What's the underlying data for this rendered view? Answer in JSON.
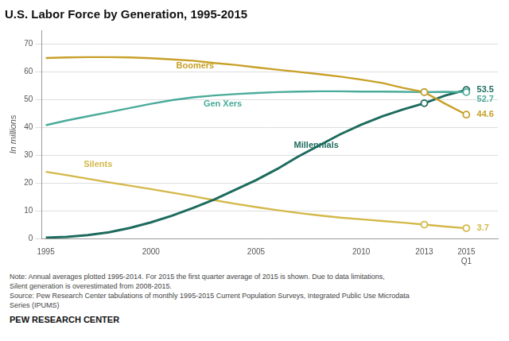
{
  "chart_data": {
    "type": "line",
    "title": "U.S. Labor Force by Generation, 1995-2015",
    "ylabel": "In millions",
    "x": [
      1995,
      1996,
      1997,
      1998,
      1999,
      2000,
      2001,
      2002,
      2003,
      2004,
      2005,
      2006,
      2007,
      2008,
      2009,
      2010,
      2011,
      2012,
      2013,
      2014,
      2015
    ],
    "series": [
      {
        "name": "Boomers",
        "color": "#c8a028",
        "marker": "circle",
        "values": [
          65.0,
          65.2,
          65.3,
          65.3,
          65.2,
          64.9,
          64.5,
          64.0,
          63.2,
          62.5,
          61.6,
          60.8,
          60.0,
          59.2,
          58.3,
          57.2,
          56.0,
          54.2,
          52.7,
          48.5,
          44.6
        ],
        "markers": [
          {
            "x": 2013,
            "y": 52.7
          },
          {
            "x": 2015,
            "y": 44.6
          }
        ]
      },
      {
        "name": "Gen Xers",
        "color": "#4aab9a",
        "marker": "circle",
        "values": [
          40.8,
          42.5,
          44.0,
          45.5,
          47.0,
          48.5,
          49.8,
          50.8,
          51.5,
          52.0,
          52.4,
          52.7,
          52.9,
          53.0,
          53.0,
          52.9,
          52.9,
          52.8,
          52.7,
          52.8,
          52.7
        ],
        "markers": [
          {
            "x": 2013,
            "y": 52.7
          },
          {
            "x": 2015,
            "y": 52.7
          }
        ]
      },
      {
        "name": "Millennials",
        "color": "#1d6b5e",
        "marker": "circle",
        "values": [
          0.3,
          0.6,
          1.2,
          2.2,
          3.8,
          5.8,
          8.2,
          11.0,
          14.0,
          17.5,
          21.0,
          25.0,
          29.5,
          33.5,
          37.5,
          41.0,
          44.0,
          46.5,
          48.7,
          51.5,
          53.5
        ],
        "markers": [
          {
            "x": 2013,
            "y": 48.7
          },
          {
            "x": 2015,
            "y": 53.5
          }
        ]
      },
      {
        "name": "Silents",
        "color": "#d4b84a",
        "marker": "circle",
        "values": [
          24.0,
          22.8,
          21.5,
          20.2,
          19.0,
          17.8,
          16.5,
          15.2,
          13.8,
          12.5,
          11.3,
          10.2,
          9.2,
          8.3,
          7.5,
          6.9,
          6.3,
          5.7,
          5.0,
          4.3,
          3.7
        ],
        "markers": [
          {
            "x": 2013,
            "y": 5.0
          },
          {
            "x": 2015,
            "y": 3.7
          }
        ]
      }
    ],
    "xlim": [
      1994.8,
      2016.5
    ],
    "xticks": [
      1995,
      2000,
      2005,
      2010,
      2013,
      {
        "value": 2015,
        "label": "2015\nQ1"
      }
    ],
    "ylim": [
      0,
      75
    ],
    "yticks": [
      0,
      10,
      20,
      30,
      40,
      50,
      60,
      70
    ],
    "grid": "y",
    "annotations": [
      {
        "x": 2015.5,
        "y": 53.5,
        "text": "53.5",
        "color": "#1d6b5e"
      },
      {
        "x": 2015.5,
        "y": 52.7,
        "text": "52.7",
        "color": "#4aab9a"
      },
      {
        "x": 2015.5,
        "y": 44.6,
        "text": "44.6",
        "color": "#c8a028"
      },
      {
        "x": 2015.5,
        "y": 3.7,
        "text": "3.7",
        "color": "#d4b84a"
      },
      {
        "x": 2001.2,
        "y": 62.2,
        "text": "Boomers",
        "color": "#c8a028"
      },
      {
        "x": 2002.5,
        "y": 48.5,
        "text": "Gen Xers",
        "color": "#4aab9a"
      },
      {
        "x": 2006.8,
        "y": 33.5,
        "text": "Millennials",
        "color": "#1d6b5e"
      },
      {
        "x": 1996.8,
        "y": 26.5,
        "text": "Silents",
        "color": "#d4b84a"
      }
    ],
    "notes": [
      "Note: Annual averages plotted 1995-2014. For 2015 the first quarter average of 2015 is shown. Due to data limitations,",
      "Silent generation is overestimated from 2008-2015.",
      "Source: Pew Research Center tabulations of monthly 1995-2015 Current Population Surveys, Integrated Public Use Microdata",
      "Series (IPUMS)"
    ],
    "footer": "PEW RESEARCH CENTER"
  }
}
